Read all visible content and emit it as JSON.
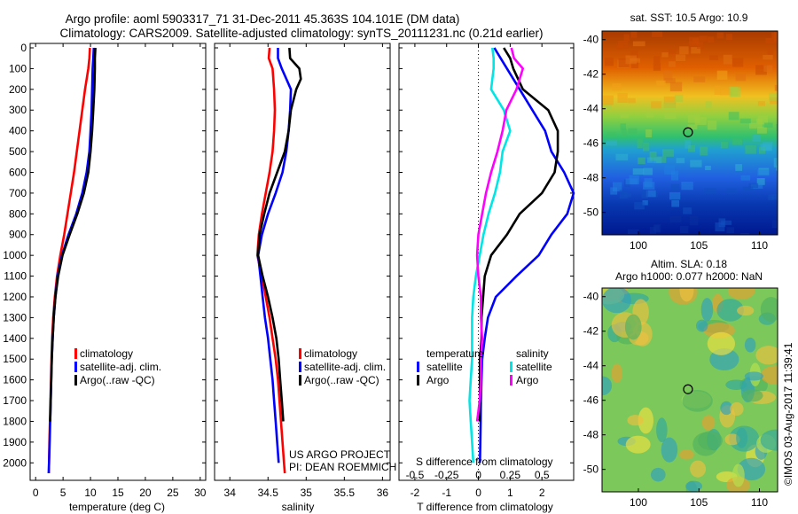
{
  "title": {
    "line1": "Argo profile: aoml 5903317_71 31-Dec-2011 45.363S 104.101E (DM data)",
    "line2": "Climatology: CARS2009. Satellite-adjusted climatology: synTS_20111231.nc (0.21d earlier)"
  },
  "colors": {
    "clim": "#ff0000",
    "sat": "#0000ff",
    "argo": "#000000",
    "sat_s": "#00e5e5",
    "argo_s": "#ff00ff"
  },
  "depth_ticks": [
    "0",
    "100",
    "200",
    "300",
    "400",
    "500",
    "600",
    "700",
    "800",
    "900",
    "1000",
    "1100",
    "1200",
    "1300",
    "1400",
    "1500",
    "1600",
    "1700",
    "1800",
    "1900",
    "2000"
  ],
  "footer": {
    "project": "US ARGO PROJECT",
    "pi": "PI: DEAN ROEMMICH",
    "watermark": "©IMOS 03-Aug-2017 11:39:41"
  },
  "map_top": {
    "title": "sat. SST: 10.5 Argo: 10.9",
    "lat_ticks": [
      "-40",
      "-42",
      "-44",
      "-46",
      "-48",
      "-50"
    ],
    "lon_ticks": [
      "100",
      "105",
      "110"
    ]
  },
  "map_bottom": {
    "title1": "Altim. SLA: 0.18",
    "title2": "Argo h1000: 0.077 h2000: NaN",
    "lat_ticks": [
      "-40",
      "-42",
      "-44",
      "-46",
      "-48",
      "-50"
    ],
    "lon_ticks": [
      "100",
      "105",
      "110"
    ]
  },
  "chart_data": [
    {
      "type": "line",
      "title": "",
      "xlabel": "temperature (deg C)",
      "ylabel": "",
      "xlim": [
        -1,
        31
      ],
      "ylim": [
        2080,
        0
      ],
      "x_ticks": [
        "0",
        "5",
        "10",
        "15",
        "20",
        "25",
        "30"
      ],
      "legend": [
        "climatology",
        "satellite-adj. clim.",
        "Argo(..raw -QC)"
      ],
      "series": [
        {
          "name": "climatology",
          "depth": [
            0,
            50,
            100,
            200,
            300,
            400,
            500,
            600,
            700,
            800,
            900,
            1000,
            1100,
            1200,
            1300,
            1400,
            1500,
            1600,
            1700,
            1800,
            1900,
            2000,
            2050
          ],
          "values": [
            9.9,
            9.8,
            9.6,
            9.0,
            8.5,
            8.0,
            7.5,
            7.0,
            6.4,
            5.8,
            5.2,
            4.5,
            3.9,
            3.5,
            3.2,
            3.0,
            2.9,
            2.8,
            2.7,
            2.6,
            2.5,
            2.45,
            2.4
          ]
        },
        {
          "name": "satellite-adj. clim.",
          "depth": [
            0,
            50,
            100,
            200,
            300,
            400,
            500,
            600,
            700,
            800,
            900,
            1000,
            1100,
            1200,
            1300,
            1400,
            1500,
            1600,
            1700,
            1800,
            1900,
            2000,
            2050
          ],
          "values": [
            10.6,
            10.5,
            10.4,
            10.3,
            10.2,
            10.0,
            9.8,
            9.3,
            8.5,
            7.4,
            6.0,
            4.8,
            4.0,
            3.6,
            3.3,
            3.1,
            2.95,
            2.85,
            2.75,
            2.65,
            2.55,
            2.45,
            2.4
          ]
        },
        {
          "name": "Argo(..raw -QC)",
          "depth": [
            0,
            50,
            100,
            200,
            300,
            400,
            500,
            600,
            700,
            800,
            900,
            1000,
            1100,
            1200,
            1300,
            1400,
            1500,
            1600,
            1700,
            1800
          ],
          "values": [
            10.9,
            10.8,
            10.8,
            10.7,
            10.5,
            10.3,
            10.0,
            9.6,
            8.8,
            7.6,
            6.2,
            4.9,
            4.1,
            3.6,
            3.3,
            3.1,
            2.95,
            2.85,
            2.75,
            2.65
          ]
        }
      ]
    },
    {
      "type": "line",
      "title": "",
      "xlabel": "salinity",
      "ylabel": "",
      "xlim": [
        33.8,
        36.1
      ],
      "ylim": [
        2080,
        0
      ],
      "x_ticks": [
        "34",
        "34.5",
        "35",
        "35.5",
        "36"
      ],
      "legend": [
        "climatology",
        "satellite-adj. clim.",
        "Argo(..raw -QC)"
      ],
      "series": [
        {
          "name": "climatology",
          "depth": [
            0,
            50,
            100,
            200,
            300,
            400,
            500,
            600,
            700,
            800,
            900,
            1000,
            1100,
            1200,
            1300,
            1400,
            1500,
            1600,
            1700,
            1800,
            1900,
            2000,
            2050
          ],
          "values": [
            34.52,
            34.51,
            34.56,
            34.58,
            34.59,
            34.58,
            34.56,
            34.52,
            34.47,
            34.42,
            34.38,
            34.36,
            34.42,
            34.47,
            34.52,
            34.56,
            34.6,
            34.63,
            34.65,
            34.67,
            34.69,
            34.71,
            34.72
          ]
        },
        {
          "name": "satellite-adj. clim.",
          "depth": [
            0,
            50,
            100,
            200,
            300,
            400,
            500,
            600,
            700,
            800,
            900,
            1000,
            1100,
            1200,
            1300,
            1400,
            1500,
            1600,
            1700,
            1800,
            1900,
            2000
          ],
          "values": [
            34.63,
            34.63,
            34.68,
            34.8,
            34.79,
            34.77,
            34.74,
            34.69,
            34.6,
            34.5,
            34.42,
            34.37,
            34.4,
            34.43,
            34.46,
            34.5,
            34.53,
            34.56,
            34.58,
            34.6,
            34.62,
            34.64
          ]
        },
        {
          "name": "Argo(..raw -QC)",
          "depth": [
            0,
            50,
            100,
            150,
            200,
            300,
            400,
            500,
            600,
            700,
            800,
            900,
            1000,
            1100,
            1200,
            1300,
            1400,
            1500,
            1600,
            1700,
            1800
          ],
          "values": [
            34.78,
            34.79,
            34.91,
            34.93,
            34.87,
            34.8,
            34.77,
            34.72,
            34.62,
            34.52,
            34.45,
            34.39,
            34.37,
            34.43,
            34.5,
            34.56,
            34.61,
            34.64,
            34.66,
            34.68,
            34.7
          ]
        }
      ]
    },
    {
      "type": "line",
      "title": "",
      "xlabel": "T difference from climatology",
      "xlabel2": "S difference from climatology",
      "ylabel": "",
      "xlim": [
        -2.5,
        3.0
      ],
      "ylim": [
        2080,
        0
      ],
      "x_ticks": [
        "-2",
        "-1",
        "0",
        "1",
        "2"
      ],
      "x2_ticks": [
        "-0.5",
        "-0.25",
        "0",
        "0.25",
        "0.5"
      ],
      "legend_headers": [
        "temperature",
        "salinity"
      ],
      "legend": [
        "satellite",
        "Argo",
        "satellite",
        "Argo"
      ],
      "series": [
        {
          "name": "temperature satellite",
          "depth": [
            0,
            50,
            100,
            200,
            300,
            400,
            500,
            600,
            700,
            800,
            900,
            1000,
            1100,
            1200,
            1300,
            1400,
            1500,
            1600,
            1700,
            1800,
            1900,
            2000
          ],
          "values": [
            0.5,
            0.7,
            0.9,
            1.3,
            1.7,
            2.1,
            2.3,
            2.7,
            3.0,
            2.8,
            2.3,
            1.9,
            1.2,
            0.55,
            0.3,
            0.2,
            0.12,
            0.1,
            0.08,
            0.07,
            0.06,
            0.05
          ]
        },
        {
          "name": "temperature Argo",
          "depth": [
            0,
            50,
            100,
            200,
            300,
            400,
            500,
            600,
            700,
            800,
            900,
            1000,
            1100,
            1200,
            1300,
            1400,
            1500,
            1600,
            1700,
            1800
          ],
          "values": [
            0.8,
            1.0,
            1.1,
            1.4,
            2.2,
            2.5,
            2.5,
            2.4,
            2.0,
            1.3,
            0.9,
            0.4,
            0.2,
            0.15,
            0.1,
            0.1,
            0.05,
            0.05,
            0.05,
            0.04
          ]
        },
        {
          "name": "salinity satellite",
          "depth": [
            0,
            50,
            100,
            200,
            300,
            400,
            500,
            600,
            700,
            800,
            900,
            1000,
            1100,
            1200,
            1300,
            1400,
            1500,
            1600,
            1700,
            1800,
            1900,
            2000
          ],
          "values": [
            0.11,
            0.12,
            0.12,
            0.1,
            0.2,
            0.25,
            0.19,
            0.17,
            0.13,
            0.08,
            0.04,
            0.01,
            -0.02,
            -0.04,
            -0.05,
            -0.05,
            -0.05,
            -0.06,
            -0.07,
            -0.06,
            -0.05,
            -0.04
          ]
        },
        {
          "name": "salinity Argo",
          "depth": [
            0,
            50,
            100,
            200,
            300,
            400,
            500,
            600,
            700,
            800,
            900,
            1000,
            1100,
            1200,
            1300,
            1400,
            1500,
            1600,
            1700,
            1800
          ],
          "values": [
            0.26,
            0.28,
            0.35,
            0.3,
            0.22,
            0.19,
            0.15,
            0.1,
            0.06,
            0.03,
            0.0,
            -0.01,
            0.0,
            0.02,
            0.02,
            0.03,
            0.02,
            0.02,
            0.01,
            -0.01
          ]
        }
      ]
    },
    {
      "type": "heatmap",
      "title": "sat. SST: 10.5 Argo: 10.9",
      "xlabel": "",
      "ylabel": "",
      "xlim": [
        97,
        111.5
      ],
      "ylim": [
        -51.3,
        -39.5
      ],
      "marker": {
        "lon": 104.1,
        "lat": -45.36
      }
    },
    {
      "type": "heatmap",
      "title": "Altim. SLA: 0.18",
      "xlabel": "",
      "ylabel": "",
      "xlim": [
        97,
        111.5
      ],
      "ylim": [
        -51.3,
        -39.5
      ],
      "marker": {
        "lon": 104.1,
        "lat": -45.36
      }
    }
  ]
}
